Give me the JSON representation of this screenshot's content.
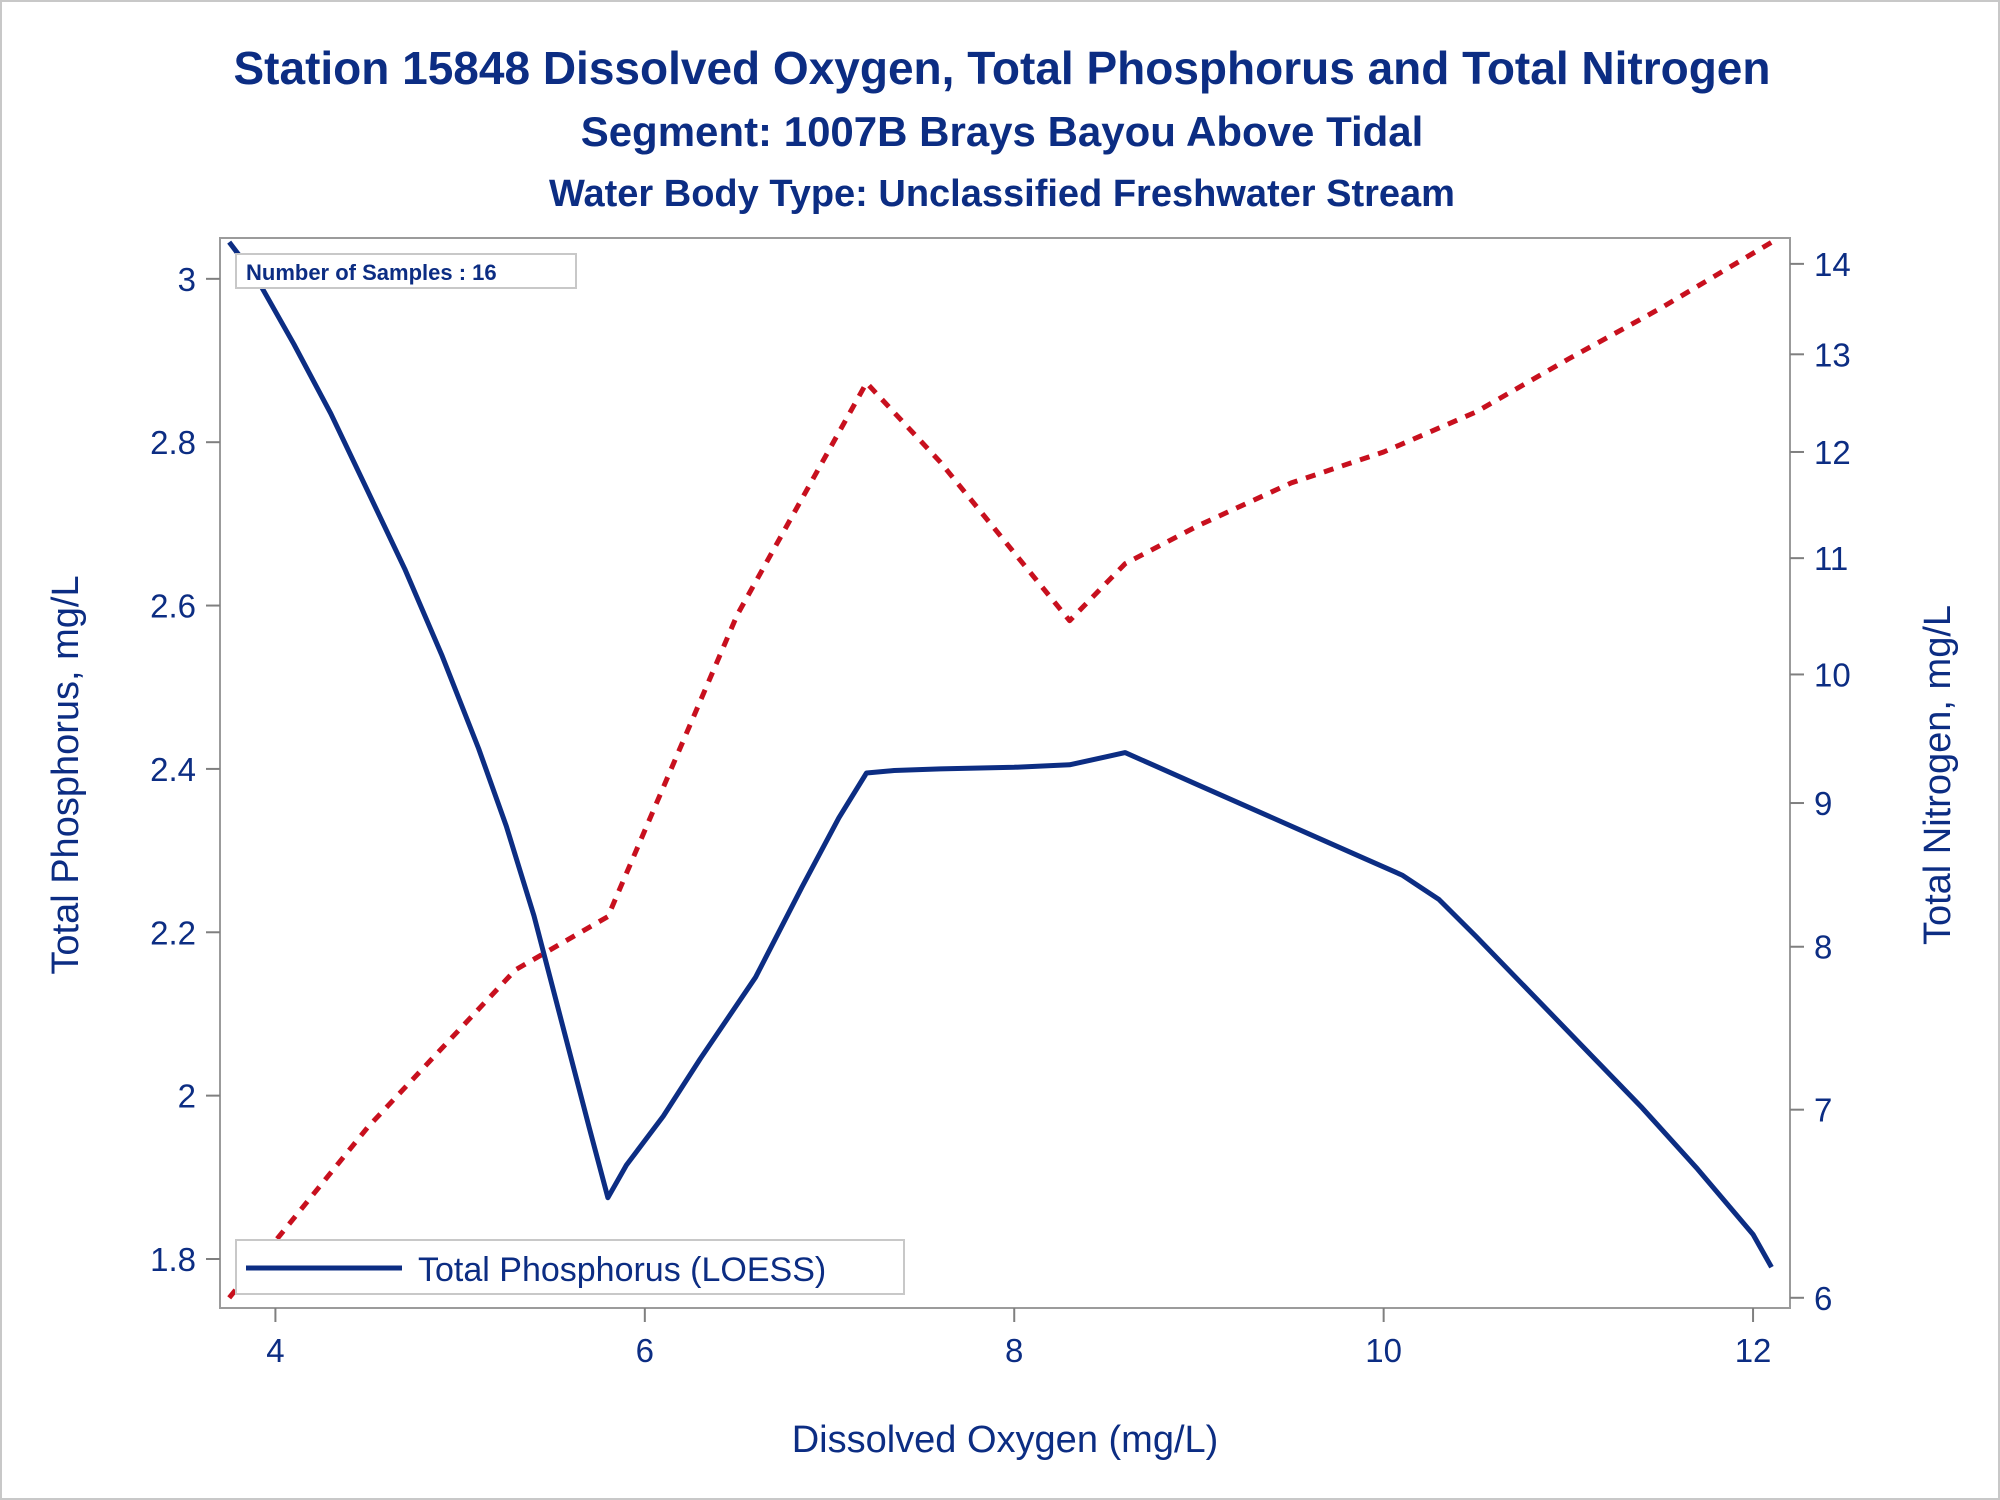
{
  "chart_data": {
    "type": "line",
    "title": "Station 15848  Dissolved Oxygen, Total Phosphorus and Total Nitrogen",
    "subtitle": "Segment: 1007B  Brays Bayou Above Tidal",
    "subtitle2": "Water Body Type: Unclassified Freshwater Stream",
    "xlabel": "Dissolved Oxygen (mg/L)",
    "ylabel_left": "Total Phosphorus, mg/L",
    "ylabel_right": "Total Nitrogen, mg/L",
    "xlim": [
      3.7,
      12.2
    ],
    "ylim_left": [
      1.74,
      3.05
    ],
    "ylim_right": [
      5.95,
      14.3
    ],
    "x_ticks": [
      "4",
      "6",
      "8",
      "10",
      "12"
    ],
    "y_left_ticks": [
      "1.8",
      "2",
      "2.2",
      "2.4",
      "2.6",
      "2.8",
      "3"
    ],
    "y_right_ticks": [
      "6",
      "7",
      "8",
      "9",
      "10",
      "11",
      "12",
      "13",
      "14"
    ],
    "annotation": "Number of Samples : 16",
    "legend": {
      "placement": "bottom-left",
      "label": "Total Phosphorus (LOESS)"
    },
    "grid": false,
    "series": [
      {
        "name": "Total Phosphorus (LOESS)",
        "axis": "left",
        "style": "solid",
        "color": "#0c2d83",
        "x": [
          3.75,
          3.9,
          4.1,
          4.3,
          4.5,
          4.7,
          4.9,
          5.1,
          5.25,
          5.4,
          5.55,
          5.7,
          5.8,
          5.9,
          6.1,
          6.3,
          6.6,
          6.85,
          7.05,
          7.2,
          7.35,
          7.6,
          8.0,
          8.3,
          8.5,
          8.6,
          8.75,
          9.0,
          9.3,
          9.6,
          9.9,
          10.1,
          10.3,
          10.5,
          10.8,
          11.1,
          11.4,
          11.7,
          12.0,
          12.1
        ],
        "y": [
          3.045,
          3.0,
          2.92,
          2.835,
          2.74,
          2.645,
          2.54,
          2.425,
          2.33,
          2.22,
          2.09,
          1.96,
          1.875,
          1.915,
          1.975,
          2.045,
          2.145,
          2.255,
          2.34,
          2.395,
          2.398,
          2.4,
          2.402,
          2.405,
          2.415,
          2.42,
          2.405,
          2.38,
          2.35,
          2.32,
          2.29,
          2.27,
          2.24,
          2.195,
          2.125,
          2.055,
          1.985,
          1.91,
          1.83,
          1.79
        ]
      },
      {
        "name": "Total Nitrogen",
        "axis": "right",
        "style": "dashed",
        "color": "#c8101e",
        "x": [
          3.75,
          4.5,
          5.3,
          5.8,
          6.5,
          7.2,
          7.6,
          8.3,
          8.6,
          9.0,
          9.5,
          10.0,
          10.5,
          11.0,
          11.5,
          12.1
        ],
        "y": [
          6.0,
          6.9,
          7.85,
          8.2,
          10.5,
          12.7,
          11.9,
          10.45,
          10.95,
          11.3,
          11.7,
          12.0,
          12.4,
          12.95,
          13.5,
          14.25
        ]
      }
    ]
  }
}
